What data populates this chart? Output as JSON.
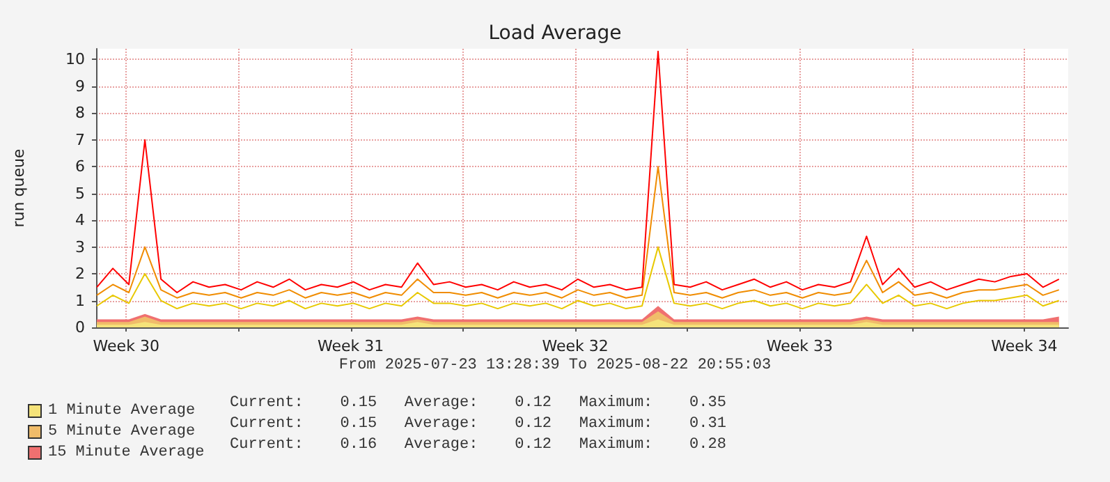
{
  "chart_data": {
    "type": "line",
    "title": "Load Average",
    "ylabel": "run queue",
    "x": [
      "2025-07-23T14:00",
      "2025-07-24T02:00",
      "2025-07-24T14:00",
      "2025-07-25T02:00",
      "2025-07-25T14:00",
      "2025-07-26T02:00",
      "2025-07-26T14:00",
      "2025-07-27T02:00",
      "2025-07-27T14:00",
      "2025-07-28T02:00",
      "2025-07-28T14:00",
      "2025-07-29T02:00",
      "2025-07-29T14:00",
      "2025-07-30T02:00",
      "2025-07-30T14:00",
      "2025-07-31T02:00",
      "2025-07-31T14:00",
      "2025-08-01T02:00",
      "2025-08-01T14:00",
      "2025-08-02T02:00",
      "2025-08-02T14:00",
      "2025-08-03T02:00",
      "2025-08-03T14:00",
      "2025-08-04T02:00",
      "2025-08-04T14:00",
      "2025-08-05T02:00",
      "2025-08-05T14:00",
      "2025-08-06T02:00",
      "2025-08-06T14:00",
      "2025-08-07T02:00",
      "2025-08-07T14:00",
      "2025-08-08T02:00",
      "2025-08-08T14:00",
      "2025-08-09T02:00",
      "2025-08-09T14:00",
      "2025-08-10T02:00",
      "2025-08-10T14:00",
      "2025-08-11T02:00",
      "2025-08-11T14:00",
      "2025-08-12T02:00",
      "2025-08-12T14:00",
      "2025-08-13T02:00",
      "2025-08-13T14:00",
      "2025-08-14T02:00",
      "2025-08-14T14:00",
      "2025-08-15T02:00",
      "2025-08-15T14:00",
      "2025-08-16T02:00",
      "2025-08-16T14:00",
      "2025-08-17T02:00",
      "2025-08-17T14:00",
      "2025-08-18T02:00",
      "2025-08-18T14:00",
      "2025-08-19T02:00",
      "2025-08-19T14:00",
      "2025-08-20T02:00",
      "2025-08-20T14:00",
      "2025-08-21T02:00",
      "2025-08-21T14:00",
      "2025-08-22T02:00",
      "2025-08-22T14:00"
    ],
    "xlim": [
      "2025-07-23T13:28",
      "2025-08-22T20:55"
    ],
    "xticks": [
      {
        "value": "2025-07-24T12:00",
        "label": "Week 30"
      },
      {
        "value": "2025-07-28T00:00",
        "label": null
      },
      {
        "value": "2025-07-31T12:00",
        "label": "Week 31"
      },
      {
        "value": "2025-08-04T00:00",
        "label": null
      },
      {
        "value": "2025-08-07T12:00",
        "label": "Week 32"
      },
      {
        "value": "2025-08-11T00:00",
        "label": null
      },
      {
        "value": "2025-08-14T12:00",
        "label": "Week 33"
      },
      {
        "value": "2025-08-18T00:00",
        "label": null
      },
      {
        "value": "2025-08-21T12:00",
        "label": "Week 34"
      }
    ],
    "ylim": [
      0,
      10.4
    ],
    "yticks": [
      0,
      1,
      2,
      3,
      4,
      5,
      6,
      7,
      8,
      9,
      10
    ],
    "grid": true,
    "legend": "bottom left",
    "stacked": true,
    "marker": "none",
    "series": [
      {
        "type": "area",
        "name": "1 Minute Average",
        "color": "#f5e37a",
        "values": [
          0.1,
          0.1,
          0.1,
          0.2,
          0.1,
          0.1,
          0.1,
          0.1,
          0.1,
          0.1,
          0.1,
          0.1,
          0.1,
          0.1,
          0.1,
          0.1,
          0.1,
          0.1,
          0.1,
          0.1,
          0.2,
          0.1,
          0.1,
          0.1,
          0.1,
          0.1,
          0.1,
          0.1,
          0.1,
          0.1,
          0.1,
          0.1,
          0.1,
          0.1,
          0.1,
          0.3,
          0.1,
          0.1,
          0.1,
          0.1,
          0.1,
          0.1,
          0.1,
          0.1,
          0.1,
          0.1,
          0.1,
          0.1,
          0.2,
          0.1,
          0.1,
          0.1,
          0.1,
          0.1,
          0.1,
          0.1,
          0.1,
          0.1,
          0.1,
          0.1,
          0.1
        ]
      },
      {
        "type": "area",
        "name": "5 Minute Average",
        "color": "#f0bc6a",
        "values": [
          0.1,
          0.1,
          0.1,
          0.2,
          0.1,
          0.1,
          0.1,
          0.1,
          0.1,
          0.1,
          0.1,
          0.1,
          0.1,
          0.1,
          0.1,
          0.1,
          0.1,
          0.1,
          0.1,
          0.1,
          0.1,
          0.1,
          0.1,
          0.1,
          0.1,
          0.1,
          0.1,
          0.1,
          0.1,
          0.1,
          0.1,
          0.1,
          0.1,
          0.1,
          0.1,
          0.3,
          0.1,
          0.1,
          0.1,
          0.1,
          0.1,
          0.1,
          0.1,
          0.1,
          0.1,
          0.1,
          0.1,
          0.1,
          0.1,
          0.1,
          0.1,
          0.1,
          0.1,
          0.1,
          0.1,
          0.1,
          0.1,
          0.1,
          0.1,
          0.1,
          0.1
        ]
      },
      {
        "type": "area",
        "name": "15 Minute Average",
        "color": "#f07070",
        "values": [
          0.1,
          0.1,
          0.1,
          0.1,
          0.1,
          0.1,
          0.1,
          0.1,
          0.1,
          0.1,
          0.1,
          0.1,
          0.1,
          0.1,
          0.1,
          0.1,
          0.1,
          0.1,
          0.1,
          0.1,
          0.1,
          0.1,
          0.1,
          0.1,
          0.1,
          0.1,
          0.1,
          0.1,
          0.1,
          0.1,
          0.1,
          0.1,
          0.1,
          0.1,
          0.1,
          0.2,
          0.1,
          0.1,
          0.1,
          0.1,
          0.1,
          0.1,
          0.1,
          0.1,
          0.1,
          0.1,
          0.1,
          0.1,
          0.1,
          0.1,
          0.1,
          0.1,
          0.1,
          0.1,
          0.1,
          0.1,
          0.1,
          0.1,
          0.1,
          0.1,
          0.2
        ]
      },
      {
        "color": "#e8c800",
        "values": [
          0.8,
          1.2,
          0.9,
          2.0,
          1.0,
          0.7,
          0.9,
          0.8,
          0.9,
          0.7,
          0.9,
          0.8,
          1.0,
          0.7,
          0.9,
          0.8,
          0.9,
          0.7,
          0.9,
          0.8,
          1.3,
          0.9,
          0.9,
          0.8,
          0.9,
          0.7,
          0.9,
          0.8,
          0.9,
          0.7,
          1.0,
          0.8,
          0.9,
          0.7,
          0.8,
          3.0,
          0.9,
          0.8,
          0.9,
          0.7,
          0.9,
          1.0,
          0.8,
          0.9,
          0.7,
          0.9,
          0.8,
          0.9,
          1.6,
          0.9,
          1.2,
          0.8,
          0.9,
          0.7,
          0.9,
          1.0,
          1.0,
          1.1,
          1.2,
          0.8,
          1.0
        ]
      },
      {
        "color": "#f08c00",
        "values": [
          1.2,
          1.6,
          1.3,
          3.0,
          1.4,
          1.1,
          1.3,
          1.2,
          1.3,
          1.1,
          1.3,
          1.2,
          1.4,
          1.1,
          1.3,
          1.2,
          1.3,
          1.1,
          1.3,
          1.2,
          1.8,
          1.3,
          1.3,
          1.2,
          1.3,
          1.1,
          1.3,
          1.2,
          1.3,
          1.1,
          1.4,
          1.2,
          1.3,
          1.1,
          1.2,
          6.0,
          1.3,
          1.2,
          1.3,
          1.1,
          1.3,
          1.4,
          1.2,
          1.3,
          1.1,
          1.3,
          1.2,
          1.3,
          2.5,
          1.3,
          1.7,
          1.2,
          1.3,
          1.1,
          1.3,
          1.4,
          1.4,
          1.5,
          1.6,
          1.2,
          1.4
        ]
      },
      {
        "color": "#ff0000",
        "values": [
          1.5,
          2.2,
          1.6,
          7.0,
          1.8,
          1.3,
          1.7,
          1.5,
          1.6,
          1.4,
          1.7,
          1.5,
          1.8,
          1.4,
          1.6,
          1.5,
          1.7,
          1.4,
          1.6,
          1.5,
          2.4,
          1.6,
          1.7,
          1.5,
          1.6,
          1.4,
          1.7,
          1.5,
          1.6,
          1.4,
          1.8,
          1.5,
          1.6,
          1.4,
          1.5,
          10.3,
          1.6,
          1.5,
          1.7,
          1.4,
          1.6,
          1.8,
          1.5,
          1.7,
          1.4,
          1.6,
          1.5,
          1.7,
          3.4,
          1.6,
          2.2,
          1.5,
          1.7,
          1.4,
          1.6,
          1.8,
          1.7,
          1.9,
          2.0,
          1.5,
          1.8
        ]
      }
    ],
    "annotations": [
      "From 2025-07-23 13:28:39 To 2025-08-22 20:55:03",
      "Current:    0.15   Average:    0.12   Maximum:    0.35",
      "Current:    0.15   Average:    0.12   Maximum:    0.31",
      "Current:    0.16   Average:    0.12   Maximum:    0.28"
    ]
  }
}
